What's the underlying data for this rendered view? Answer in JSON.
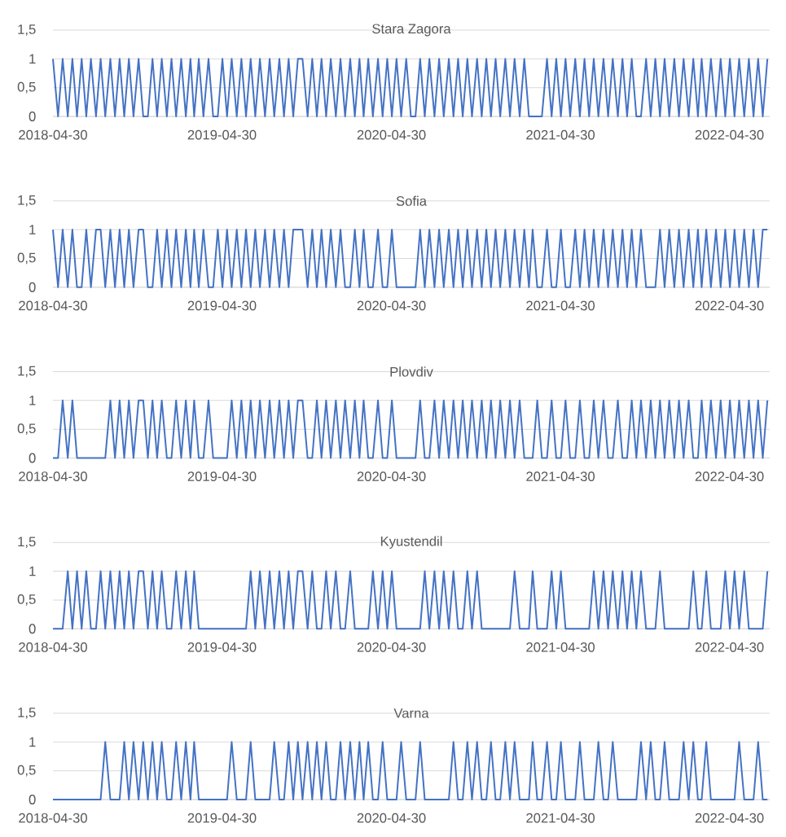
{
  "chart_data": [
    {
      "type": "line",
      "title": "Stara Zagora",
      "color": "#4472c4",
      "grid": "y",
      "xlim": [
        "2018-04-30",
        "2022-07-26"
      ],
      "xticks": [
        "2018-04-30",
        "2019-04-30",
        "2020-04-30",
        "2021-04-30",
        "2022-04-30"
      ],
      "ylim": [
        0,
        1.5
      ],
      "yticks": [
        {
          "value": 0,
          "label": "0"
        },
        {
          "value": 0.5,
          "label": "0,5"
        },
        {
          "value": 1,
          "label": "1"
        },
        {
          "value": 1.5,
          "label": "1,5"
        }
      ],
      "x": [
        "2018-04-30",
        "2018-05-11",
        "2018-05-21",
        "2018-06-01",
        "2018-06-11",
        "2018-06-21",
        "2018-07-01",
        "2018-07-11",
        "2018-07-21",
        "2018-08-01",
        "2018-08-11",
        "2018-08-21",
        "2018-09-01",
        "2018-09-11",
        "2018-09-21",
        "2018-10-01",
        "2018-10-11",
        "2018-10-21",
        "2018-11-01",
        "2018-11-11",
        "2018-11-21",
        "2018-12-01",
        "2018-12-11",
        "2018-12-21",
        "2019-01-01",
        "2019-01-11",
        "2019-01-21",
        "2019-02-01",
        "2019-02-11",
        "2019-02-21",
        "2019-03-01",
        "2019-03-11",
        "2019-03-21",
        "2019-04-01",
        "2019-04-11",
        "2019-04-21",
        "2019-05-01",
        "2019-05-11",
        "2019-05-21",
        "2019-06-01",
        "2019-06-11",
        "2019-06-21",
        "2019-07-01",
        "2019-07-11",
        "2019-07-21",
        "2019-08-01",
        "2019-08-11",
        "2019-08-21",
        "2019-09-01",
        "2019-09-11",
        "2019-09-21",
        "2019-10-01",
        "2019-10-11",
        "2019-10-21",
        "2019-11-01",
        "2019-11-11",
        "2019-11-21",
        "2019-12-01",
        "2019-12-11",
        "2019-12-21",
        "2020-01-01",
        "2020-01-11",
        "2020-01-21",
        "2020-02-01",
        "2020-02-11",
        "2020-02-21",
        "2020-03-01",
        "2020-03-11",
        "2020-03-21",
        "2020-04-01",
        "2020-04-11",
        "2020-04-21",
        "2020-05-01",
        "2020-05-11",
        "2020-05-21",
        "2020-06-01",
        "2020-06-11",
        "2020-06-21",
        "2020-07-01",
        "2020-07-11",
        "2020-07-21",
        "2020-08-01",
        "2020-08-11",
        "2020-08-21",
        "2020-09-01",
        "2020-09-11",
        "2020-09-21",
        "2020-10-01",
        "2020-10-11",
        "2020-10-21",
        "2020-11-01",
        "2020-11-11",
        "2020-11-21",
        "2020-12-01",
        "2020-12-11",
        "2020-12-21",
        "2021-01-01",
        "2021-01-11",
        "2021-01-21",
        "2021-02-01",
        "2021-02-11",
        "2021-02-21",
        "2021-03-01",
        "2021-03-11",
        "2021-03-21",
        "2021-04-01",
        "2021-04-11",
        "2021-04-21",
        "2021-05-01",
        "2021-05-11",
        "2021-05-21",
        "2021-06-01",
        "2021-06-11",
        "2021-06-21",
        "2021-07-01",
        "2021-07-11",
        "2021-07-21",
        "2021-08-01",
        "2021-08-11",
        "2021-08-21",
        "2021-09-01",
        "2021-09-11",
        "2021-09-21",
        "2021-10-01",
        "2021-10-11",
        "2021-10-21",
        "2021-11-01",
        "2021-11-11",
        "2021-11-21",
        "2021-12-01",
        "2021-12-11",
        "2021-12-21",
        "2022-01-01",
        "2022-01-11",
        "2022-01-21",
        "2022-02-01",
        "2022-02-11",
        "2022-02-21",
        "2022-03-01",
        "2022-03-11",
        "2022-03-21",
        "2022-04-01",
        "2022-04-11",
        "2022-04-21",
        "2022-05-01",
        "2022-05-11",
        "2022-05-21",
        "2022-06-01",
        "2022-06-11",
        "2022-06-21",
        "2022-07-01",
        "2022-07-11",
        "2022-07-21"
      ],
      "values": [
        1,
        0,
        1,
        0,
        1,
        0,
        1,
        0,
        1,
        0,
        1,
        0,
        1,
        0,
        1,
        0,
        1,
        0,
        1,
        0,
        0,
        1,
        0,
        1,
        0,
        1,
        0,
        1,
        0,
        1,
        0,
        1,
        0,
        1,
        0,
        0,
        1,
        0,
        1,
        0,
        1,
        0,
        1,
        0,
        1,
        0,
        1,
        0,
        1,
        0,
        1,
        0,
        1,
        1,
        0,
        1,
        0,
        1,
        0,
        1,
        0,
        1,
        0,
        1,
        0,
        1,
        0,
        1,
        0,
        1,
        0,
        1,
        0,
        1,
        0,
        1,
        0,
        0,
        1,
        0,
        1,
        0,
        1,
        0,
        1,
        0,
        1,
        0,
        1,
        0,
        1,
        0,
        1,
        0,
        1,
        0,
        1,
        0,
        1,
        0,
        1,
        0,
        0,
        0,
        0,
        1,
        0,
        1,
        0,
        1,
        0,
        1,
        0,
        1,
        0,
        1,
        0,
        1,
        0,
        1,
        0,
        1,
        0,
        1,
        0,
        0,
        1,
        0,
        1,
        0,
        1,
        0,
        1,
        0,
        1,
        0,
        1,
        0,
        1,
        0,
        1,
        0,
        1,
        0,
        1,
        0,
        1,
        0,
        1,
        0,
        1,
        0,
        1
      ]
    },
    {
      "type": "line",
      "title": "Sofia",
      "color": "#4472c4",
      "grid": "y",
      "xlim": [
        "2018-04-30",
        "2022-07-26"
      ],
      "xticks": [
        "2018-04-30",
        "2019-04-30",
        "2020-04-30",
        "2021-04-30",
        "2022-04-30"
      ],
      "ylim": [
        0,
        1.5
      ],
      "yticks": [
        {
          "value": 0,
          "label": "0"
        },
        {
          "value": 0.5,
          "label": "0,5"
        },
        {
          "value": 1,
          "label": "1"
        },
        {
          "value": 1.5,
          "label": "1,5"
        }
      ],
      "x": [
        "2018-04-30",
        "2018-05-11",
        "2018-05-21",
        "2018-06-01",
        "2018-06-11",
        "2018-06-21",
        "2018-07-01",
        "2018-07-11",
        "2018-07-21",
        "2018-08-01",
        "2018-08-11",
        "2018-08-21",
        "2018-09-01",
        "2018-09-11",
        "2018-09-21",
        "2018-10-01",
        "2018-10-11",
        "2018-10-21",
        "2018-11-01",
        "2018-11-11",
        "2018-11-21",
        "2018-12-01",
        "2018-12-11",
        "2018-12-21",
        "2019-01-01",
        "2019-01-11",
        "2019-01-21",
        "2019-02-01",
        "2019-02-11",
        "2019-02-21",
        "2019-03-01",
        "2019-03-11",
        "2019-03-21",
        "2019-04-01",
        "2019-04-11",
        "2019-04-21",
        "2019-05-01",
        "2019-05-11",
        "2019-05-21",
        "2019-06-01",
        "2019-06-11",
        "2019-06-21",
        "2019-07-01",
        "2019-07-11",
        "2019-07-21",
        "2019-08-01",
        "2019-08-11",
        "2019-08-21",
        "2019-09-01",
        "2019-09-11",
        "2019-09-21",
        "2019-10-01",
        "2019-10-11",
        "2019-10-21",
        "2019-11-01",
        "2019-11-11",
        "2019-11-21",
        "2019-12-01",
        "2019-12-11",
        "2019-12-21",
        "2020-01-01",
        "2020-01-11",
        "2020-01-21",
        "2020-02-01",
        "2020-02-11",
        "2020-02-21",
        "2020-03-01",
        "2020-03-11",
        "2020-03-21",
        "2020-04-01",
        "2020-04-11",
        "2020-04-21",
        "2020-05-01",
        "2020-05-11",
        "2020-05-21",
        "2020-06-01",
        "2020-06-11",
        "2020-06-21",
        "2020-07-01",
        "2020-07-11",
        "2020-07-21",
        "2020-08-01",
        "2020-08-11",
        "2020-08-21",
        "2020-09-01",
        "2020-09-11",
        "2020-09-21",
        "2020-10-01",
        "2020-10-11",
        "2020-10-21",
        "2020-11-01",
        "2020-11-11",
        "2020-11-21",
        "2020-12-01",
        "2020-12-11",
        "2020-12-21",
        "2021-01-01",
        "2021-01-11",
        "2021-01-21",
        "2021-02-01",
        "2021-02-11",
        "2021-02-21",
        "2021-03-01",
        "2021-03-11",
        "2021-03-21",
        "2021-04-01",
        "2021-04-11",
        "2021-04-21",
        "2021-05-01",
        "2021-05-11",
        "2021-05-21",
        "2021-06-01",
        "2021-06-11",
        "2021-06-21",
        "2021-07-01",
        "2021-07-11",
        "2021-07-21",
        "2021-08-01",
        "2021-08-11",
        "2021-08-21",
        "2021-09-01",
        "2021-09-11",
        "2021-09-21",
        "2021-10-01",
        "2021-10-11",
        "2021-10-21",
        "2021-11-01",
        "2021-11-11",
        "2021-11-21",
        "2021-12-01",
        "2021-12-11",
        "2021-12-21",
        "2022-01-01",
        "2022-01-11",
        "2022-01-21",
        "2022-02-01",
        "2022-02-11",
        "2022-02-21",
        "2022-03-01",
        "2022-03-11",
        "2022-03-21",
        "2022-04-01",
        "2022-04-11",
        "2022-04-21",
        "2022-05-01",
        "2022-05-11",
        "2022-05-21",
        "2022-06-01",
        "2022-06-11",
        "2022-06-21",
        "2022-07-01",
        "2022-07-11",
        "2022-07-21"
      ],
      "values": [
        1,
        0,
        1,
        0,
        1,
        0,
        0,
        1,
        0,
        1,
        1,
        0,
        1,
        0,
        1,
        0,
        1,
        0,
        1,
        1,
        0,
        0,
        1,
        0,
        1,
        0,
        1,
        0,
        1,
        0,
        1,
        0,
        1,
        0,
        0,
        1,
        0,
        1,
        0,
        1,
        0,
        1,
        0,
        1,
        0,
        1,
        0,
        1,
        0,
        1,
        0,
        1,
        1,
        1,
        0,
        1,
        0,
        1,
        0,
        1,
        0,
        1,
        0,
        0,
        1,
        0,
        1,
        0,
        0,
        1,
        0,
        0,
        1,
        0,
        0,
        0,
        0,
        0,
        1,
        0,
        1,
        0,
        1,
        0,
        1,
        0,
        1,
        0,
        1,
        0,
        1,
        0,
        1,
        0,
        1,
        0,
        1,
        0,
        1,
        0,
        1,
        0,
        1,
        0,
        0,
        1,
        0,
        0,
        1,
        0,
        0,
        1,
        0,
        1,
        0,
        1,
        0,
        1,
        0,
        1,
        0,
        1,
        0,
        1,
        0,
        1,
        0,
        0,
        0,
        1,
        0,
        1,
        0,
        1,
        0,
        1,
        0,
        1,
        0,
        1,
        0,
        1,
        0,
        1,
        0,
        1,
        0,
        1,
        0,
        1,
        0,
        1,
        1
      ]
    },
    {
      "type": "line",
      "title": "Plovdiv",
      "color": "#4472c4",
      "grid": "y",
      "xlim": [
        "2018-04-30",
        "2022-07-26"
      ],
      "xticks": [
        "2018-04-30",
        "2019-04-30",
        "2020-04-30",
        "2021-04-30",
        "2022-04-30"
      ],
      "ylim": [
        0,
        1.5
      ],
      "yticks": [
        {
          "value": 0,
          "label": "0"
        },
        {
          "value": 0.5,
          "label": "0,5"
        },
        {
          "value": 1,
          "label": "1"
        },
        {
          "value": 1.5,
          "label": "1,5"
        }
      ],
      "x": [
        "2018-04-30",
        "2018-05-11",
        "2018-05-21",
        "2018-06-01",
        "2018-06-11",
        "2018-06-21",
        "2018-07-01",
        "2018-07-11",
        "2018-07-21",
        "2018-08-01",
        "2018-08-11",
        "2018-08-21",
        "2018-09-01",
        "2018-09-11",
        "2018-09-21",
        "2018-10-01",
        "2018-10-11",
        "2018-10-21",
        "2018-11-01",
        "2018-11-11",
        "2018-11-21",
        "2018-12-01",
        "2018-12-11",
        "2018-12-21",
        "2019-01-01",
        "2019-01-11",
        "2019-01-21",
        "2019-02-01",
        "2019-02-11",
        "2019-02-21",
        "2019-03-01",
        "2019-03-11",
        "2019-03-21",
        "2019-04-01",
        "2019-04-11",
        "2019-04-21",
        "2019-05-01",
        "2019-05-11",
        "2019-05-21",
        "2019-06-01",
        "2019-06-11",
        "2019-06-21",
        "2019-07-01",
        "2019-07-11",
        "2019-07-21",
        "2019-08-01",
        "2019-08-11",
        "2019-08-21",
        "2019-09-01",
        "2019-09-11",
        "2019-09-21",
        "2019-10-01",
        "2019-10-11",
        "2019-10-21",
        "2019-11-01",
        "2019-11-11",
        "2019-11-21",
        "2019-12-01",
        "2019-12-11",
        "2019-12-21",
        "2020-01-01",
        "2020-01-11",
        "2020-01-21",
        "2020-02-01",
        "2020-02-11",
        "2020-02-21",
        "2020-03-01",
        "2020-03-11",
        "2020-03-21",
        "2020-04-01",
        "2020-04-11",
        "2020-04-21",
        "2020-05-01",
        "2020-05-11",
        "2020-05-21",
        "2020-06-01",
        "2020-06-11",
        "2020-06-21",
        "2020-07-01",
        "2020-07-11",
        "2020-07-21",
        "2020-08-01",
        "2020-08-11",
        "2020-08-21",
        "2020-09-01",
        "2020-09-11",
        "2020-09-21",
        "2020-10-01",
        "2020-10-11",
        "2020-10-21",
        "2020-11-01",
        "2020-11-11",
        "2020-11-21",
        "2020-12-01",
        "2020-12-11",
        "2020-12-21",
        "2021-01-01",
        "2021-01-11",
        "2021-01-21",
        "2021-02-01",
        "2021-02-11",
        "2021-02-21",
        "2021-03-01",
        "2021-03-11",
        "2021-03-21",
        "2021-04-01",
        "2021-04-11",
        "2021-04-21",
        "2021-05-01",
        "2021-05-11",
        "2021-05-21",
        "2021-06-01",
        "2021-06-11",
        "2021-06-21",
        "2021-07-01",
        "2021-07-11",
        "2021-07-21",
        "2021-08-01",
        "2021-08-11",
        "2021-08-21",
        "2021-09-01",
        "2021-09-11",
        "2021-09-21",
        "2021-10-01",
        "2021-10-11",
        "2021-10-21",
        "2021-11-01",
        "2021-11-11",
        "2021-11-21",
        "2021-12-01",
        "2021-12-11",
        "2021-12-21",
        "2022-01-01",
        "2022-01-11",
        "2022-01-21",
        "2022-02-01",
        "2022-02-11",
        "2022-02-21",
        "2022-03-01",
        "2022-03-11",
        "2022-03-21",
        "2022-04-01",
        "2022-04-11",
        "2022-04-21",
        "2022-05-01",
        "2022-05-11",
        "2022-05-21",
        "2022-06-01",
        "2022-06-11",
        "2022-06-21",
        "2022-07-01",
        "2022-07-11",
        "2022-07-21"
      ],
      "values": [
        0,
        0,
        1,
        0,
        1,
        0,
        0,
        0,
        0,
        0,
        0,
        0,
        1,
        0,
        1,
        0,
        1,
        0,
        1,
        1,
        0,
        1,
        0,
        1,
        0,
        0,
        1,
        0,
        1,
        0,
        1,
        0,
        0,
        1,
        0,
        0,
        0,
        0,
        1,
        0,
        1,
        0,
        1,
        0,
        1,
        0,
        1,
        0,
        1,
        0,
        1,
        0,
        1,
        1,
        0,
        0,
        1,
        0,
        1,
        0,
        1,
        0,
        1,
        0,
        1,
        0,
        1,
        0,
        0,
        1,
        0,
        0,
        1,
        0,
        0,
        0,
        0,
        0,
        1,
        0,
        0,
        1,
        0,
        1,
        0,
        1,
        0,
        1,
        0,
        1,
        0,
        1,
        0,
        1,
        0,
        1,
        0,
        1,
        0,
        1,
        0,
        0,
        0,
        1,
        0,
        0,
        1,
        0,
        0,
        1,
        0,
        0,
        1,
        0,
        0,
        1,
        0,
        1,
        0,
        0,
        1,
        0,
        0,
        1,
        0,
        1,
        0,
        1,
        0,
        1,
        0,
        1,
        0,
        1,
        0,
        1,
        0,
        0,
        1,
        0,
        1,
        0,
        1,
        0,
        1,
        0,
        1,
        0,
        1,
        0,
        1,
        0,
        1
      ]
    },
    {
      "type": "line",
      "title": "Kyustendil",
      "color": "#4472c4",
      "grid": "y",
      "xlim": [
        "2018-04-30",
        "2022-07-26"
      ],
      "xticks": [
        "2018-04-30",
        "2019-04-30",
        "2020-04-30",
        "2021-04-30",
        "2022-04-30"
      ],
      "ylim": [
        0,
        1.5
      ],
      "yticks": [
        {
          "value": 0,
          "label": "0"
        },
        {
          "value": 0.5,
          "label": "0,5"
        },
        {
          "value": 1,
          "label": "1"
        },
        {
          "value": 1.5,
          "label": "1,5"
        }
      ],
      "x": [
        "2018-04-30",
        "2018-05-11",
        "2018-05-21",
        "2018-06-01",
        "2018-06-11",
        "2018-06-21",
        "2018-07-01",
        "2018-07-11",
        "2018-07-21",
        "2018-08-01",
        "2018-08-11",
        "2018-08-21",
        "2018-09-01",
        "2018-09-11",
        "2018-09-21",
        "2018-10-01",
        "2018-10-11",
        "2018-10-21",
        "2018-11-01",
        "2018-11-11",
        "2018-11-21",
        "2018-12-01",
        "2018-12-11",
        "2018-12-21",
        "2019-01-01",
        "2019-01-11",
        "2019-01-21",
        "2019-02-01",
        "2019-02-11",
        "2019-02-21",
        "2019-03-01",
        "2019-03-11",
        "2019-03-21",
        "2019-04-01",
        "2019-04-11",
        "2019-04-21",
        "2019-05-01",
        "2019-05-11",
        "2019-05-21",
        "2019-06-01",
        "2019-06-11",
        "2019-06-21",
        "2019-07-01",
        "2019-07-11",
        "2019-07-21",
        "2019-08-01",
        "2019-08-11",
        "2019-08-21",
        "2019-09-01",
        "2019-09-11",
        "2019-09-21",
        "2019-10-01",
        "2019-10-11",
        "2019-10-21",
        "2019-11-01",
        "2019-11-11",
        "2019-11-21",
        "2019-12-01",
        "2019-12-11",
        "2019-12-21",
        "2020-01-01",
        "2020-01-11",
        "2020-01-21",
        "2020-02-01",
        "2020-02-11",
        "2020-02-21",
        "2020-03-01",
        "2020-03-11",
        "2020-03-21",
        "2020-04-01",
        "2020-04-11",
        "2020-04-21",
        "2020-05-01",
        "2020-05-11",
        "2020-05-21",
        "2020-06-01",
        "2020-06-11",
        "2020-06-21",
        "2020-07-01",
        "2020-07-11",
        "2020-07-21",
        "2020-08-01",
        "2020-08-11",
        "2020-08-21",
        "2020-09-01",
        "2020-09-11",
        "2020-09-21",
        "2020-10-01",
        "2020-10-11",
        "2020-10-21",
        "2020-11-01",
        "2020-11-11",
        "2020-11-21",
        "2020-12-01",
        "2020-12-11",
        "2020-12-21",
        "2021-01-01",
        "2021-01-11",
        "2021-01-21",
        "2021-02-01",
        "2021-02-11",
        "2021-02-21",
        "2021-03-01",
        "2021-03-11",
        "2021-03-21",
        "2021-04-01",
        "2021-04-11",
        "2021-04-21",
        "2021-05-01",
        "2021-05-11",
        "2021-05-21",
        "2021-06-01",
        "2021-06-11",
        "2021-06-21",
        "2021-07-01",
        "2021-07-11",
        "2021-07-21",
        "2021-08-01",
        "2021-08-11",
        "2021-08-21",
        "2021-09-01",
        "2021-09-11",
        "2021-09-21",
        "2021-10-01",
        "2021-10-11",
        "2021-10-21",
        "2021-11-01",
        "2021-11-11",
        "2021-11-21",
        "2021-12-01",
        "2021-12-11",
        "2021-12-21",
        "2022-01-01",
        "2022-01-11",
        "2022-01-21",
        "2022-02-01",
        "2022-02-11",
        "2022-02-21",
        "2022-03-01",
        "2022-03-11",
        "2022-03-21",
        "2022-04-01",
        "2022-04-11",
        "2022-04-21",
        "2022-05-01",
        "2022-05-11",
        "2022-05-21",
        "2022-06-01",
        "2022-06-11",
        "2022-06-21",
        "2022-07-01",
        "2022-07-11",
        "2022-07-21"
      ],
      "values": [
        0,
        0,
        0,
        1,
        0,
        1,
        0,
        1,
        0,
        0,
        1,
        0,
        1,
        0,
        1,
        0,
        1,
        0,
        1,
        1,
        0,
        1,
        0,
        1,
        0,
        0,
        1,
        0,
        1,
        0,
        1,
        0,
        0,
        0,
        0,
        0,
        0,
        0,
        0,
        0,
        0,
        0,
        1,
        0,
        1,
        0,
        1,
        0,
        1,
        0,
        1,
        0,
        1,
        1,
        0,
        1,
        0,
        0,
        1,
        0,
        1,
        0,
        0,
        1,
        0,
        0,
        0,
        0,
        1,
        0,
        1,
        0,
        1,
        0,
        0,
        0,
        0,
        0,
        0,
        1,
        0,
        1,
        0,
        1,
        0,
        1,
        0,
        0,
        1,
        0,
        1,
        0,
        0,
        0,
        0,
        0,
        0,
        0,
        1,
        0,
        0,
        0,
        1,
        0,
        0,
        0,
        1,
        0,
        1,
        0,
        0,
        0,
        0,
        0,
        0,
        1,
        0,
        1,
        0,
        1,
        0,
        1,
        0,
        1,
        0,
        1,
        0,
        0,
        0,
        1,
        0,
        0,
        0,
        0,
        0,
        0,
        1,
        0,
        0,
        1,
        0,
        0,
        0,
        1,
        0,
        1,
        0,
        1,
        0,
        0,
        0,
        0,
        1
      ]
    },
    {
      "type": "line",
      "title": "Varna",
      "color": "#4472c4",
      "grid": "y",
      "xlim": [
        "2018-04-30",
        "2022-07-26"
      ],
      "xticks": [
        "2018-04-30",
        "2019-04-30",
        "2020-04-30",
        "2021-04-30",
        "2022-04-30"
      ],
      "ylim": [
        0,
        1.5
      ],
      "yticks": [
        {
          "value": 0,
          "label": "0"
        },
        {
          "value": 0.5,
          "label": "0,5"
        },
        {
          "value": 1,
          "label": "1"
        },
        {
          "value": 1.5,
          "label": "1,5"
        }
      ],
      "x": [
        "2018-04-30",
        "2018-05-11",
        "2018-05-21",
        "2018-06-01",
        "2018-06-11",
        "2018-06-21",
        "2018-07-01",
        "2018-07-11",
        "2018-07-21",
        "2018-08-01",
        "2018-08-11",
        "2018-08-21",
        "2018-09-01",
        "2018-09-11",
        "2018-09-21",
        "2018-10-01",
        "2018-10-11",
        "2018-10-21",
        "2018-11-01",
        "2018-11-11",
        "2018-11-21",
        "2018-12-01",
        "2018-12-11",
        "2018-12-21",
        "2019-01-01",
        "2019-01-11",
        "2019-01-21",
        "2019-02-01",
        "2019-02-11",
        "2019-02-21",
        "2019-03-01",
        "2019-03-11",
        "2019-03-21",
        "2019-04-01",
        "2019-04-11",
        "2019-04-21",
        "2019-05-01",
        "2019-05-11",
        "2019-05-21",
        "2019-06-01",
        "2019-06-11",
        "2019-06-21",
        "2019-07-01",
        "2019-07-11",
        "2019-07-21",
        "2019-08-01",
        "2019-08-11",
        "2019-08-21",
        "2019-09-01",
        "2019-09-11",
        "2019-09-21",
        "2019-10-01",
        "2019-10-11",
        "2019-10-21",
        "2019-11-01",
        "2019-11-11",
        "2019-11-21",
        "2019-12-01",
        "2019-12-11",
        "2019-12-21",
        "2020-01-01",
        "2020-01-11",
        "2020-01-21",
        "2020-02-01",
        "2020-02-11",
        "2020-02-21",
        "2020-03-01",
        "2020-03-11",
        "2020-03-21",
        "2020-04-01",
        "2020-04-11",
        "2020-04-21",
        "2020-05-01",
        "2020-05-11",
        "2020-05-21",
        "2020-06-01",
        "2020-06-11",
        "2020-06-21",
        "2020-07-01",
        "2020-07-11",
        "2020-07-21",
        "2020-08-01",
        "2020-08-11",
        "2020-08-21",
        "2020-09-01",
        "2020-09-11",
        "2020-09-21",
        "2020-10-01",
        "2020-10-11",
        "2020-10-21",
        "2020-11-01",
        "2020-11-11",
        "2020-11-21",
        "2020-12-01",
        "2020-12-11",
        "2020-12-21",
        "2021-01-01",
        "2021-01-11",
        "2021-01-21",
        "2021-02-01",
        "2021-02-11",
        "2021-02-21",
        "2021-03-01",
        "2021-03-11",
        "2021-03-21",
        "2021-04-01",
        "2021-04-11",
        "2021-04-21",
        "2021-05-01",
        "2021-05-11",
        "2021-05-21",
        "2021-06-01",
        "2021-06-11",
        "2021-06-21",
        "2021-07-01",
        "2021-07-11",
        "2021-07-21",
        "2021-08-01",
        "2021-08-11",
        "2021-08-21",
        "2021-09-01",
        "2021-09-11",
        "2021-09-21",
        "2021-10-01",
        "2021-10-11",
        "2021-10-21",
        "2021-11-01",
        "2021-11-11",
        "2021-11-21",
        "2021-12-01",
        "2021-12-11",
        "2021-12-21",
        "2022-01-01",
        "2022-01-11",
        "2022-01-21",
        "2022-02-01",
        "2022-02-11",
        "2022-02-21",
        "2022-03-01",
        "2022-03-11",
        "2022-03-21",
        "2022-04-01",
        "2022-04-11",
        "2022-04-21",
        "2022-05-01",
        "2022-05-11",
        "2022-05-21",
        "2022-06-01",
        "2022-06-11",
        "2022-06-21",
        "2022-07-01",
        "2022-07-11",
        "2022-07-21"
      ],
      "values": [
        0,
        0,
        0,
        0,
        0,
        0,
        0,
        0,
        0,
        0,
        0,
        1,
        0,
        0,
        0,
        1,
        0,
        1,
        0,
        1,
        0,
        1,
        0,
        1,
        0,
        0,
        1,
        0,
        1,
        0,
        1,
        0,
        0,
        0,
        0,
        0,
        0,
        0,
        1,
        0,
        0,
        0,
        1,
        0,
        0,
        0,
        0,
        1,
        0,
        0,
        1,
        0,
        1,
        0,
        1,
        0,
        1,
        0,
        1,
        0,
        0,
        1,
        0,
        1,
        0,
        1,
        0,
        1,
        0,
        0,
        1,
        0,
        0,
        0,
        1,
        0,
        0,
        0,
        1,
        0,
        0,
        0,
        0,
        0,
        0,
        1,
        0,
        0,
        1,
        0,
        1,
        0,
        0,
        1,
        0,
        0,
        1,
        0,
        1,
        0,
        0,
        0,
        1,
        0,
        0,
        1,
        0,
        0,
        1,
        0,
        0,
        0,
        1,
        0,
        0,
        0,
        1,
        0,
        0,
        1,
        0,
        0,
        0,
        0,
        0,
        1,
        0,
        1,
        0,
        0,
        1,
        0,
        0,
        0,
        1,
        0,
        1,
        0,
        0,
        1,
        0,
        0,
        0,
        0,
        0,
        0,
        1,
        0,
        0,
        0,
        1,
        0,
        0
      ]
    }
  ]
}
